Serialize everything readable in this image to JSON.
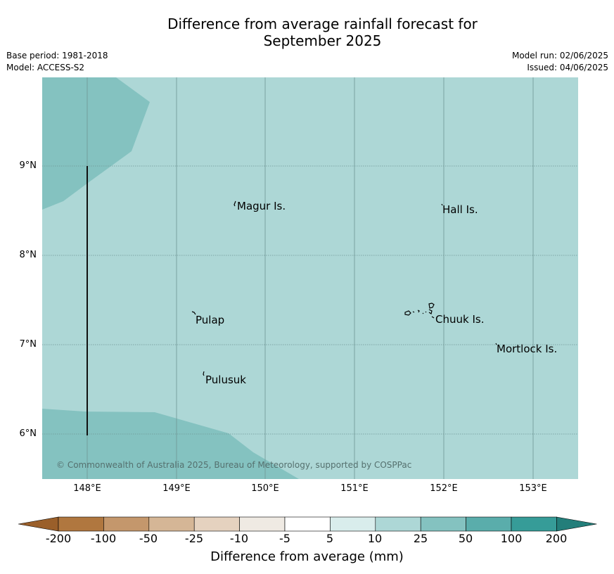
{
  "title_line1": "Difference from average rainfall forecast for",
  "title_line2": "September 2025",
  "base_period": "Base period: 1981-2018",
  "model": "Model: ACCESS-S2",
  "model_run": "Model run: 02/06/2025",
  "issued": "Issued: 04/06/2025",
  "copyright": "© Commonwealth of Australia 2025, Bureau of Meteorology, supported by COSPPac",
  "lat_labels": [
    "9°N",
    "8°N",
    "7°N",
    "6°N"
  ],
  "lon_labels": [
    "148°E",
    "149°E",
    "150°E",
    "151°E",
    "152°E",
    "153°E"
  ],
  "places": {
    "magur": "Magur Is.",
    "hall": "Hall Is.",
    "pulap": "Pulap",
    "chuuk": "Chuuk Is.",
    "mortlock": "Mortlock Is.",
    "pulusuk": "Pulusuk"
  },
  "colorbar": {
    "label": "Difference from average (mm)",
    "ticks": [
      "-200",
      "-100",
      "-50",
      "-25",
      "-10",
      "-5",
      "5",
      "10",
      "25",
      "50",
      "100",
      "200"
    ],
    "colors": [
      "#9a5f2a",
      "#b0773f",
      "#c4976c",
      "#d5b696",
      "#e5d2bf",
      "#efeae3",
      "#ffffff",
      "#d9edec",
      "#add7d6",
      "#84c2c0",
      "#5aadab",
      "#369c98",
      "#237e7a"
    ]
  },
  "fill_colors": {
    "base": "#add7d6",
    "wetter": "#84c2c0"
  }
}
